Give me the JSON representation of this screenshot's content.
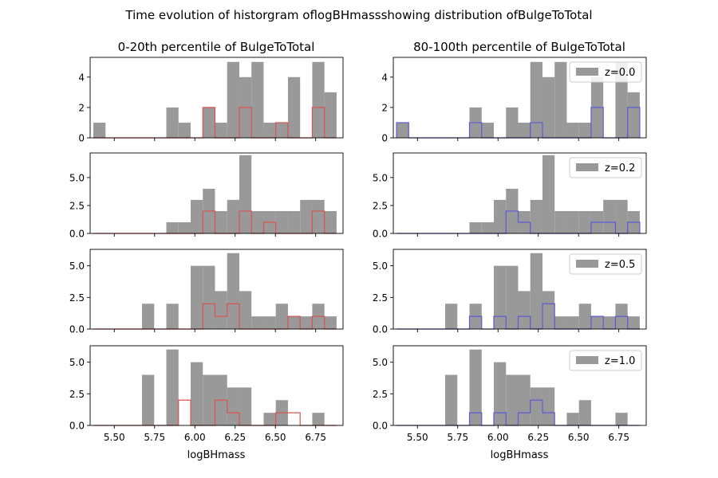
{
  "suptitle": "Time evolution of historgram oflogBHmassshowing distribution ofBulgeToTotal",
  "columns": [
    {
      "title": "0-20th percentile of BulgeToTotal",
      "xlabel": "logBHmass",
      "overlay_color": "#d9534f"
    },
    {
      "title": "80-100th percentile of BulgeToTotal",
      "xlabel": "logBHmass",
      "overlay_color": "#5b5bd6"
    }
  ],
  "colors": {
    "gray_fill": "#999999",
    "left_step": "#d9534f",
    "right_step": "#5b5bd6"
  },
  "chart_data": {
    "type": "bar",
    "subtype": "histogram-grid",
    "bin_start": 5.37,
    "bin_width": 0.0755,
    "n_bins": 20,
    "xlim": [
      5.35,
      6.92
    ],
    "xticks": [
      "5.50",
      "5.75",
      "6.00",
      "6.25",
      "6.50",
      "6.75"
    ],
    "xtick_values": [
      5.5,
      5.75,
      6.0,
      6.25,
      6.5,
      6.75
    ],
    "legend_placement": "top-right of right column",
    "rows": [
      {
        "redshift_label": "z=0.0",
        "ylim": [
          0,
          5.3
        ],
        "yticks": [
          "0",
          "2",
          "4"
        ],
        "ytick_values": [
          0,
          2,
          4
        ],
        "gray": [
          1,
          0,
          0,
          0,
          0,
          0,
          2,
          1,
          0,
          2,
          1,
          5,
          4,
          5,
          1,
          1,
          4,
          0,
          5,
          3
        ],
        "left_step": [
          0,
          0,
          0,
          0,
          0,
          0,
          0,
          0,
          0,
          2,
          0,
          0,
          2,
          0,
          0,
          1,
          0,
          0,
          2,
          0
        ],
        "right_step": [
          1,
          0,
          0,
          0,
          0,
          0,
          1,
          0,
          0,
          0,
          0,
          1,
          0,
          0,
          0,
          0,
          2,
          0,
          0,
          2
        ]
      },
      {
        "redshift_label": "z=0.2",
        "ylim": [
          0,
          7.2
        ],
        "yticks": [
          "0.0",
          "2.5",
          "5.0"
        ],
        "ytick_values": [
          0,
          2.5,
          5
        ],
        "gray": [
          0,
          0,
          0,
          0,
          0,
          0,
          1,
          1,
          3,
          4,
          2,
          3,
          7,
          2,
          2,
          2,
          2,
          3,
          3,
          2
        ],
        "left_step": [
          0,
          0,
          0,
          0,
          0,
          0,
          0,
          0,
          0,
          2,
          0,
          0,
          2,
          0,
          1,
          0,
          0,
          0,
          2,
          0
        ],
        "right_step": [
          0,
          0,
          0,
          0,
          0,
          0,
          0,
          0,
          0,
          2,
          1,
          0,
          0,
          0,
          0,
          0,
          1,
          1,
          0,
          1
        ]
      },
      {
        "redshift_label": "z=0.5",
        "ylim": [
          0,
          6.3
        ],
        "yticks": [
          "0.0",
          "2.5",
          "5.0"
        ],
        "ytick_values": [
          0,
          2.5,
          5
        ],
        "gray": [
          0,
          0,
          0,
          0,
          2,
          0,
          2,
          0,
          5,
          5,
          3,
          6,
          3,
          1,
          1,
          2,
          1,
          1,
          2,
          1
        ],
        "left_step": [
          0,
          0,
          0,
          0,
          0,
          0,
          0,
          0,
          0,
          2,
          1,
          2,
          0,
          0,
          0,
          0,
          1,
          0,
          1,
          0
        ],
        "right_step": [
          0,
          0,
          0,
          0,
          0,
          0,
          1,
          0,
          1,
          0,
          1,
          0,
          2,
          0,
          0,
          0,
          1,
          0,
          1,
          0
        ]
      },
      {
        "redshift_label": "z=1.0",
        "ylim": [
          0,
          6.3
        ],
        "yticks": [
          "0.0",
          "2.5",
          "5.0"
        ],
        "ytick_values": [
          0,
          2.5,
          5
        ],
        "gray": [
          0,
          0,
          0,
          0,
          4,
          0,
          6,
          0,
          5,
          4,
          4,
          3,
          3,
          0,
          1,
          2,
          0,
          0,
          1,
          0
        ],
        "left_step": [
          0,
          0,
          0,
          0,
          0,
          0,
          0,
          2,
          0,
          0,
          2,
          1,
          0,
          0,
          0,
          1,
          1,
          0,
          0,
          0
        ],
        "right_step": [
          0,
          0,
          0,
          0,
          0,
          0,
          1,
          0,
          1,
          0,
          1,
          2,
          1,
          0,
          0,
          0,
          0,
          0,
          0,
          0
        ]
      }
    ]
  }
}
